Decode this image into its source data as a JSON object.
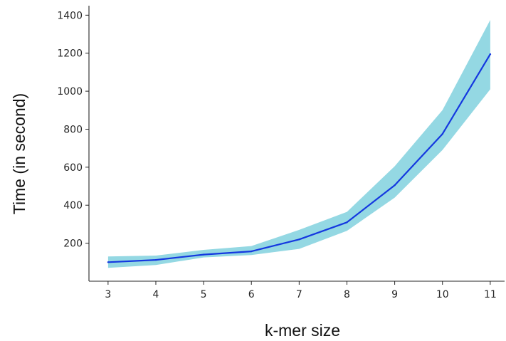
{
  "chart_data": {
    "type": "line",
    "title": "",
    "xlabel": "k-mer size",
    "ylabel": "Time (in second)",
    "x": [
      3,
      4,
      5,
      6,
      7,
      8,
      9,
      10,
      11
    ],
    "x_ticks": [
      "3",
      "4",
      "5",
      "6",
      "7",
      "8",
      "9",
      "10",
      "11"
    ],
    "y_ticks": [
      "200",
      "400",
      "600",
      "800",
      "1000",
      "1200",
      "1400"
    ],
    "series": [
      {
        "values": [
          100,
          112,
          140,
          157,
          220,
          310,
          505,
          775,
          1195
        ],
        "lower": [
          70,
          85,
          125,
          138,
          170,
          265,
          440,
          690,
          1010
        ],
        "upper": [
          130,
          135,
          165,
          185,
          270,
          365,
          605,
          900,
          1375
        ]
      }
    ],
    "xlim": [
      2.6,
      11.3
    ],
    "ylim": [
      0,
      1450
    ],
    "grid": false,
    "colors": {
      "line": "#1438e0",
      "band": "#94d8e3",
      "axis": "#262626"
    }
  }
}
